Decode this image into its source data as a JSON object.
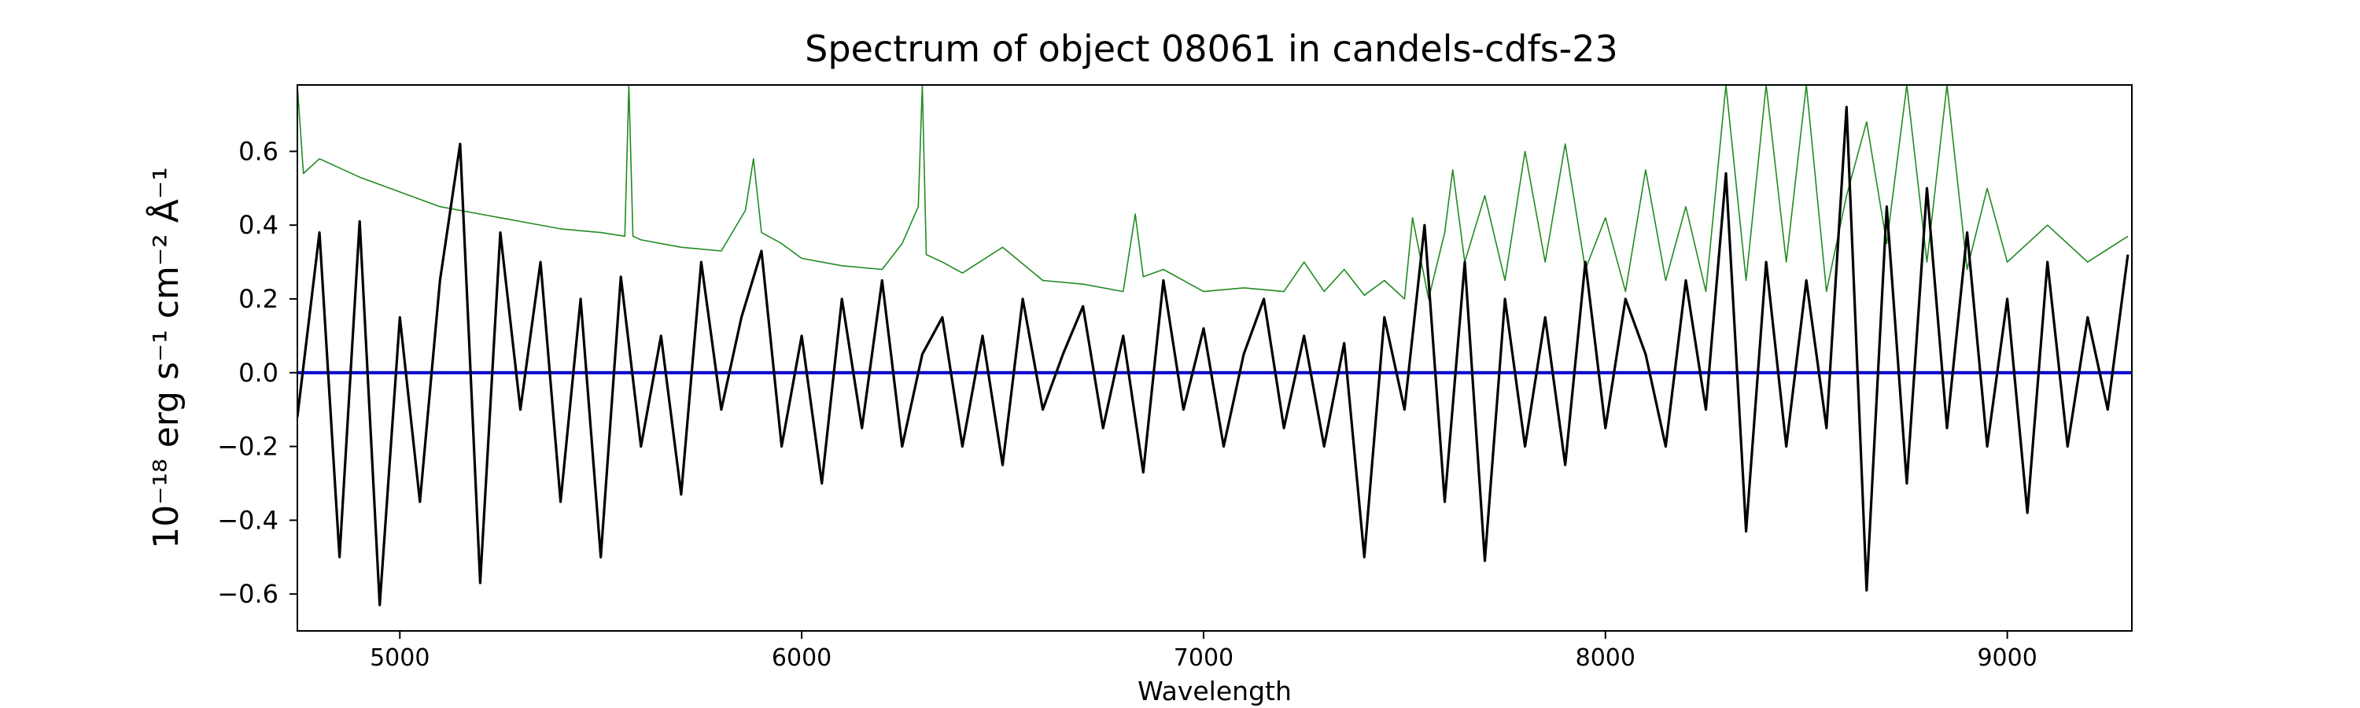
{
  "chart_data": {
    "type": "line",
    "title": "Spectrum of object 08061 in candels-cdfs-23",
    "xlabel": "Wavelength",
    "ylabel": "10⁻¹⁸ erg s⁻¹ cm⁻² Å⁻¹",
    "xlim": [
      4745,
      9310
    ],
    "ylim": [
      -0.7,
      0.78
    ],
    "x_ticks": [
      5000,
      6000,
      7000,
      8000,
      9000
    ],
    "y_ticks": [
      -0.6,
      -0.4,
      -0.2,
      0.0,
      0.2,
      0.4,
      0.6
    ],
    "x_tick_labels": [
      "5000",
      "6000",
      "7000",
      "8000",
      "9000"
    ],
    "y_tick_labels": [
      "−0.6",
      "−0.4",
      "−0.2",
      "0.0",
      "0.2",
      "0.4",
      "0.6"
    ],
    "grid": false,
    "series": [
      {
        "role": "flux",
        "color": "#000000",
        "x": [
          4745,
          4800,
          4850,
          4900,
          4950,
          5000,
          5050,
          5100,
          5150,
          5200,
          5250,
          5300,
          5350,
          5400,
          5450,
          5500,
          5550,
          5600,
          5650,
          5700,
          5750,
          5800,
          5850,
          5900,
          5950,
          6000,
          6050,
          6100,
          6150,
          6200,
          6250,
          6300,
          6350,
          6400,
          6450,
          6500,
          6550,
          6600,
          6650,
          6700,
          6750,
          6800,
          6850,
          6900,
          6950,
          7000,
          7050,
          7100,
          7150,
          7200,
          7250,
          7300,
          7350,
          7400,
          7450,
          7500,
          7550,
          7600,
          7650,
          7700,
          7750,
          7800,
          7850,
          7900,
          7950,
          8000,
          8050,
          8100,
          8150,
          8200,
          8250,
          8300,
          8350,
          8400,
          8450,
          8500,
          8550,
          8600,
          8650,
          8700,
          8750,
          8800,
          8850,
          8900,
          8950,
          9000,
          9050,
          9100,
          9150,
          9200,
          9250,
          9300
        ],
        "y": [
          -0.12,
          0.38,
          -0.5,
          0.41,
          -0.63,
          0.15,
          -0.35,
          0.25,
          0.62,
          -0.57,
          0.38,
          -0.1,
          0.3,
          -0.35,
          0.2,
          -0.5,
          0.26,
          -0.2,
          0.1,
          -0.33,
          0.3,
          -0.1,
          0.15,
          0.33,
          -0.2,
          0.1,
          -0.3,
          0.2,
          -0.15,
          0.25,
          -0.2,
          0.05,
          0.15,
          -0.2,
          0.1,
          -0.25,
          0.2,
          -0.1,
          0.05,
          0.18,
          -0.15,
          0.1,
          -0.27,
          0.25,
          -0.1,
          0.12,
          -0.2,
          0.05,
          0.2,
          -0.15,
          0.1,
          -0.2,
          0.08,
          -0.5,
          0.15,
          -0.1,
          0.4,
          -0.35,
          0.3,
          -0.51,
          0.2,
          -0.2,
          0.15,
          -0.25,
          0.3,
          -0.15,
          0.2,
          0.05,
          -0.2,
          0.25,
          -0.1,
          0.54,
          -0.43,
          0.3,
          -0.2,
          0.25,
          -0.15,
          0.72,
          -0.59,
          0.45,
          -0.3,
          0.5,
          -0.15,
          0.38,
          -0.2,
          0.2,
          -0.38,
          0.3,
          -0.2,
          0.15,
          -0.1,
          0.32
        ]
      },
      {
        "role": "error",
        "color": "#228B22",
        "x": [
          4745,
          4760,
          4800,
          4900,
          5000,
          5100,
          5200,
          5300,
          5400,
          5500,
          5560,
          5570,
          5580,
          5600,
          5700,
          5800,
          5860,
          5880,
          5900,
          5950,
          6000,
          6100,
          6200,
          6250,
          6290,
          6300,
          6310,
          6350,
          6400,
          6500,
          6600,
          6700,
          6800,
          6830,
          6850,
          6900,
          7000,
          7100,
          7200,
          7250,
          7300,
          7350,
          7400,
          7450,
          7500,
          7520,
          7560,
          7600,
          7620,
          7650,
          7700,
          7750,
          7800,
          7850,
          7900,
          7950,
          8000,
          8050,
          8100,
          8150,
          8200,
          8250,
          8300,
          8350,
          8400,
          8450,
          8500,
          8550,
          8600,
          8650,
          8700,
          8750,
          8800,
          8850,
          8900,
          8950,
          9000,
          9100,
          9200,
          9300
        ],
        "y": [
          0.78,
          0.54,
          0.58,
          0.53,
          0.49,
          0.45,
          0.43,
          0.41,
          0.39,
          0.38,
          0.37,
          0.78,
          0.37,
          0.36,
          0.34,
          0.33,
          0.44,
          0.58,
          0.38,
          0.35,
          0.31,
          0.29,
          0.28,
          0.35,
          0.45,
          0.78,
          0.32,
          0.3,
          0.27,
          0.34,
          0.25,
          0.24,
          0.22,
          0.43,
          0.26,
          0.28,
          0.22,
          0.23,
          0.22,
          0.3,
          0.22,
          0.28,
          0.21,
          0.25,
          0.2,
          0.42,
          0.2,
          0.38,
          0.55,
          0.3,
          0.48,
          0.25,
          0.6,
          0.3,
          0.62,
          0.28,
          0.42,
          0.22,
          0.55,
          0.25,
          0.45,
          0.22,
          0.78,
          0.25,
          0.78,
          0.3,
          0.78,
          0.22,
          0.48,
          0.68,
          0.35,
          0.78,
          0.3,
          0.78,
          0.28,
          0.5,
          0.3,
          0.4,
          0.3,
          0.37
        ]
      },
      {
        "role": "model",
        "color": "#0000CC",
        "x": [
          4745,
          9310
        ],
        "y": [
          0.0,
          0.0
        ]
      }
    ]
  }
}
